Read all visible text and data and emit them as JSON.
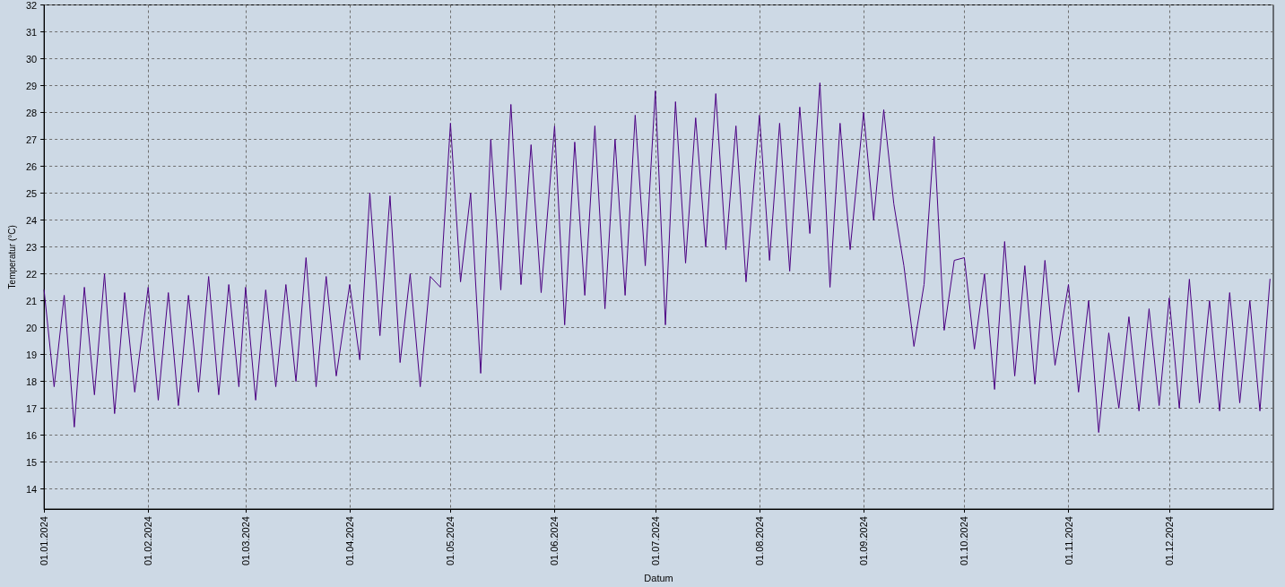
{
  "chart_data": {
    "type": "line",
    "xlabel": "Datum",
    "ylabel": "Temperatur (°C)",
    "xlim": [
      "2024-01-01",
      "2025-01-01"
    ],
    "xticks": [
      {
        "value": "2024-01-01",
        "label": "01.01.2024"
      },
      {
        "value": "2024-02-01",
        "label": "01.02.2024"
      },
      {
        "value": "2024-03-01",
        "label": "01.03.2024"
      },
      {
        "value": "2024-04-01",
        "label": "01.04.2024"
      },
      {
        "value": "2024-05-01",
        "label": "01.05.2024"
      },
      {
        "value": "2024-06-01",
        "label": "01.06.2024"
      },
      {
        "value": "2024-07-01",
        "label": "01.07.2024"
      },
      {
        "value": "2024-08-01",
        "label": "01.08.2024"
      },
      {
        "value": "2024-09-01",
        "label": "01.09.2024"
      },
      {
        "value": "2024-10-01",
        "label": "01.10.2024"
      },
      {
        "value": "2024-11-01",
        "label": "01.11.2024"
      },
      {
        "value": "2024-12-01",
        "label": "01.12.2024"
      }
    ],
    "ylim": [
      13.25,
      32
    ],
    "yticks": [
      14,
      15,
      16,
      17,
      18,
      19,
      20,
      21,
      22,
      23,
      24,
      25,
      26,
      27,
      28,
      29,
      30,
      31,
      32
    ],
    "grid": true,
    "marker": "none",
    "line_style": "solid",
    "series": [
      {
        "color": "#4b0082",
        "x": [
          "2024-01-01",
          "2024-01-04",
          "2024-01-07",
          "2024-01-10",
          "2024-01-13",
          "2024-01-16",
          "2024-01-19",
          "2024-01-22",
          "2024-01-25",
          "2024-01-28",
          "2024-02-01",
          "2024-02-04",
          "2024-02-07",
          "2024-02-10",
          "2024-02-13",
          "2024-02-16",
          "2024-02-19",
          "2024-02-22",
          "2024-02-25",
          "2024-02-28",
          "2024-03-01",
          "2024-03-04",
          "2024-03-07",
          "2024-03-10",
          "2024-03-13",
          "2024-03-16",
          "2024-03-19",
          "2024-03-22",
          "2024-03-25",
          "2024-03-28",
          "2024-04-01",
          "2024-04-04",
          "2024-04-07",
          "2024-04-10",
          "2024-04-13",
          "2024-04-16",
          "2024-04-19",
          "2024-04-22",
          "2024-04-25",
          "2024-04-28",
          "2024-05-01",
          "2024-05-04",
          "2024-05-07",
          "2024-05-10",
          "2024-05-13",
          "2024-05-16",
          "2024-05-19",
          "2024-05-22",
          "2024-05-25",
          "2024-05-28",
          "2024-06-01",
          "2024-06-04",
          "2024-06-07",
          "2024-06-10",
          "2024-06-13",
          "2024-06-16",
          "2024-06-19",
          "2024-06-22",
          "2024-06-25",
          "2024-06-28",
          "2024-07-01",
          "2024-07-04",
          "2024-07-07",
          "2024-07-10",
          "2024-07-13",
          "2024-07-16",
          "2024-07-19",
          "2024-07-22",
          "2024-07-25",
          "2024-07-28",
          "2024-08-01",
          "2024-08-04",
          "2024-08-07",
          "2024-08-10",
          "2024-08-13",
          "2024-08-16",
          "2024-08-19",
          "2024-08-22",
          "2024-08-25",
          "2024-08-28",
          "2024-09-01",
          "2024-09-04",
          "2024-09-07",
          "2024-09-10",
          "2024-09-13",
          "2024-09-16",
          "2024-09-19",
          "2024-09-22",
          "2024-09-25",
          "2024-09-28",
          "2024-10-01",
          "2024-10-04",
          "2024-10-07",
          "2024-10-10",
          "2024-10-13",
          "2024-10-16",
          "2024-10-19",
          "2024-10-22",
          "2024-10-25",
          "2024-10-28",
          "2024-11-01",
          "2024-11-04",
          "2024-11-07",
          "2024-11-10",
          "2024-11-13",
          "2024-11-16",
          "2024-11-19",
          "2024-11-22",
          "2024-11-25",
          "2024-11-28",
          "2024-12-01",
          "2024-12-04",
          "2024-12-07",
          "2024-12-10",
          "2024-12-13",
          "2024-12-16",
          "2024-12-19",
          "2024-12-22",
          "2024-12-25",
          "2024-12-28",
          "2024-12-31"
        ],
        "values": [
          21.4,
          17.8,
          21.2,
          16.3,
          21.5,
          17.5,
          22.0,
          16.8,
          21.3,
          17.6,
          21.5,
          17.3,
          21.3,
          17.1,
          21.2,
          17.6,
          21.9,
          17.5,
          21.6,
          17.8,
          21.5,
          17.3,
          21.4,
          17.8,
          21.6,
          18.0,
          22.6,
          17.8,
          21.9,
          18.2,
          21.6,
          18.8,
          25.0,
          19.7,
          24.9,
          18.7,
          22.0,
          17.8,
          21.9,
          21.5,
          27.6,
          21.7,
          25.0,
          18.3,
          27.0,
          21.4,
          28.3,
          21.6,
          26.8,
          21.3,
          27.5,
          20.1,
          26.9,
          21.2,
          27.5,
          20.7,
          27.0,
          21.2,
          27.9,
          22.3,
          28.8,
          20.1,
          28.4,
          22.4,
          27.8,
          23.0,
          28.7,
          22.9,
          27.5,
          21.7,
          27.9,
          22.5,
          27.6,
          22.1,
          28.2,
          23.5,
          29.1,
          21.5,
          27.6,
          22.9,
          28.0,
          24.0,
          28.1,
          24.6,
          22.3,
          19.3,
          21.6,
          27.1,
          19.9,
          22.5,
          22.6,
          19.2,
          22.0,
          17.7,
          23.2,
          18.2,
          22.3,
          17.9,
          22.5,
          18.6,
          21.6,
          17.6,
          21.0,
          16.1,
          19.8,
          17.0,
          20.4,
          16.9,
          20.7,
          17.1,
          21.1,
          17.0,
          21.8,
          17.2,
          21.0,
          16.9,
          21.3,
          17.2,
          21.0,
          16.9,
          21.8
        ]
      }
    ]
  }
}
